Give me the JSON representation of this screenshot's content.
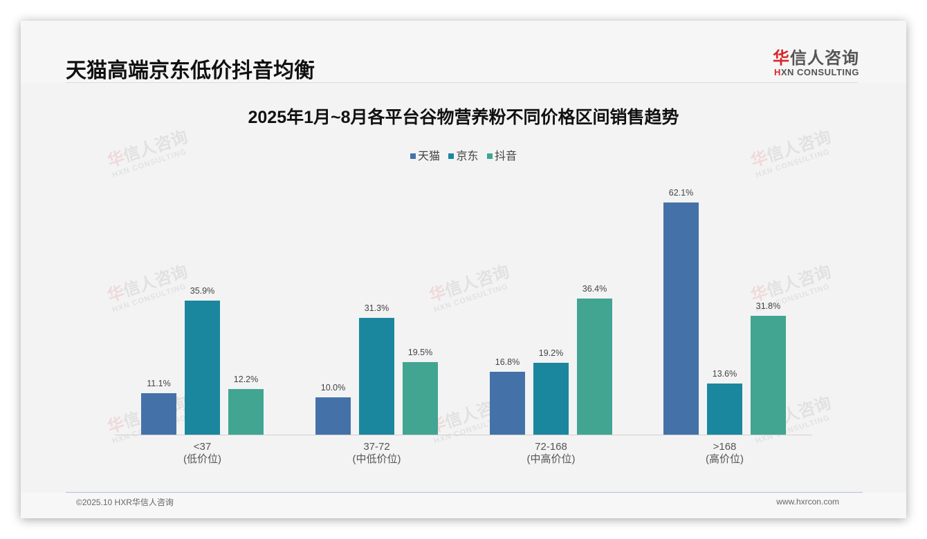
{
  "slide": {
    "title": "天猫高端京东低价抖音均衡",
    "logo": {
      "cn_accent": "华",
      "cn_rest": "信人咨询",
      "en_accent": "H",
      "en_rest": "XN CONSULTING"
    },
    "watermark": {
      "cn_accent": "华",
      "cn_rest": "信人咨询",
      "en": "HXN CONSULTING"
    },
    "footer": {
      "copyright": "©2025.10 HXR华信人咨询",
      "website": "www.hxrcon.com"
    }
  },
  "legend": [
    {
      "label": "天猫",
      "color": "#4472a8"
    },
    {
      "label": "京东",
      "color": "#1a879e"
    },
    {
      "label": "抖音",
      "color": "#41a592"
    }
  ],
  "chart_data": {
    "type": "bar",
    "title": "2025年1月~8月各平台谷物营养粉不同价格区间销售趋势",
    "categories": [
      "<37 (低价位)",
      "37-72 (中低价位)",
      "72-168 (中高价位)",
      ">168 (高价位)"
    ],
    "category_labels": [
      {
        "range": "<37",
        "tier": "(低价位)"
      },
      {
        "range": "37-72",
        "tier": "(中低价位)"
      },
      {
        "range": "72-168",
        "tier": "(中高价位)"
      },
      {
        "range": ">168",
        "tier": "(高价位)"
      }
    ],
    "series": [
      {
        "name": "天猫",
        "color": "#4472a8",
        "values": [
          11.1,
          10.0,
          16.8,
          62.1
        ],
        "labels": [
          "11.1%",
          "10.0%",
          "16.8%",
          "62.1%"
        ]
      },
      {
        "name": "京东",
        "color": "#1a879e",
        "values": [
          35.9,
          31.3,
          19.2,
          13.6
        ],
        "labels": [
          "35.9%",
          "31.3%",
          "19.2%",
          "13.6%"
        ]
      },
      {
        "name": "抖音",
        "color": "#41a592",
        "values": [
          12.2,
          19.5,
          36.4,
          31.8
        ],
        "labels": [
          "12.2%",
          "19.5%",
          "36.4%",
          "31.8%"
        ]
      }
    ],
    "xlabel": "",
    "ylabel": "",
    "unit": "%",
    "grid": false,
    "legend_position": "top",
    "ylim": [
      0,
      65
    ]
  }
}
